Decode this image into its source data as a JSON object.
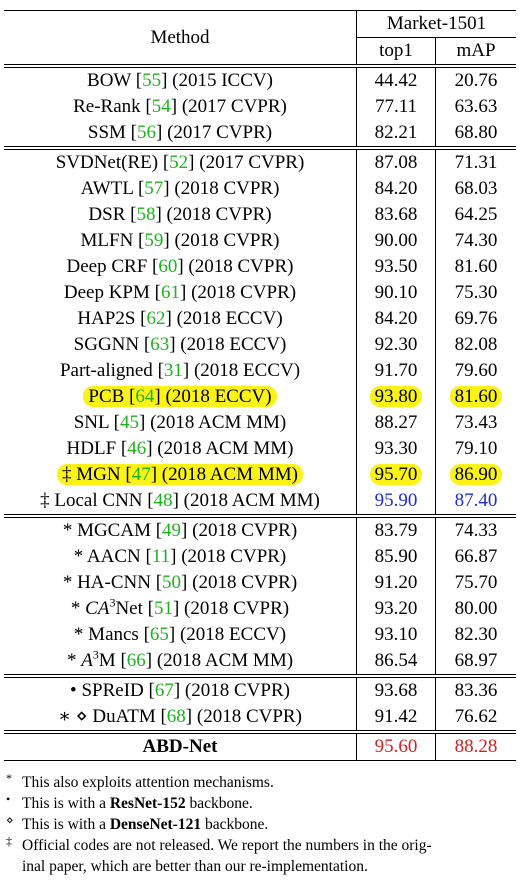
{
  "header": {
    "method": "Method",
    "dataset": "Market-1501",
    "top1": "top1",
    "map": "mAP"
  },
  "groups": [
    {
      "rows": [
        {
          "pre": "",
          "name": "BOW",
          "sup": "",
          "cite": "55",
          "venue": "(2015 ICCV)",
          "top1": "44.42",
          "map": "20.76"
        },
        {
          "pre": "",
          "name": "Re-Rank",
          "sup": "",
          "cite": "54",
          "venue": "(2017 CVPR)",
          "top1": "77.11",
          "map": "63.63"
        },
        {
          "pre": "",
          "name": "SSM",
          "sup": "",
          "cite": "56",
          "venue": "(2017 CVPR)",
          "top1": "82.21",
          "map": "68.80"
        }
      ]
    },
    {
      "rows": [
        {
          "pre": "",
          "name": "SVDNet(RE)",
          "sup": "",
          "cite": "52",
          "venue": "(2017 CVPR)",
          "top1": "87.08",
          "map": "71.31"
        },
        {
          "pre": "",
          "name": "AWTL",
          "sup": "",
          "cite": "57",
          "venue": "(2018 CVPR)",
          "top1": "84.20",
          "map": "68.03"
        },
        {
          "pre": "",
          "name": "DSR",
          "sup": "",
          "cite": "58",
          "venue": "(2018 CVPR)",
          "top1": "83.68",
          "map": "64.25"
        },
        {
          "pre": "",
          "name": "MLFN",
          "sup": "",
          "cite": "59",
          "venue": "(2018 CVPR)",
          "top1": "90.00",
          "map": "74.30"
        },
        {
          "pre": "",
          "name": "Deep CRF",
          "sup": "",
          "cite": "60",
          "venue": "(2018 CVPR)",
          "top1": "93.50",
          "map": "81.60"
        },
        {
          "pre": "",
          "name": "Deep KPM",
          "sup": "",
          "cite": "61",
          "venue": "(2018 CVPR)",
          "top1": "90.10",
          "map": "75.30"
        },
        {
          "pre": "",
          "name": "HAP2S",
          "sup": "",
          "cite": "62",
          "venue": "(2018 ECCV)",
          "top1": "84.20",
          "map": "69.76"
        },
        {
          "pre": "",
          "name": "SGGNN",
          "sup": "",
          "cite": "63",
          "venue": "(2018 ECCV)",
          "top1": "92.30",
          "map": "82.08"
        },
        {
          "pre": "",
          "name": "Part-aligned",
          "sup": "",
          "cite": "31",
          "venue": "(2018 ECCV)",
          "top1": "91.70",
          "map": "79.60"
        },
        {
          "pre": "",
          "name": "PCB",
          "sup": "",
          "cite": "64",
          "venue": "(2018 ECCV)",
          "top1": "93.80",
          "map": "81.60",
          "highlight": true
        },
        {
          "pre": "",
          "name": "SNL",
          "sup": "",
          "cite": "45",
          "venue": "(2018 ACM MM)",
          "top1": "88.27",
          "map": "73.43"
        },
        {
          "pre": "",
          "name": "HDLF",
          "sup": "",
          "cite": "46",
          "venue": "(2018 ACM MM)",
          "top1": "93.30",
          "map": "79.10"
        },
        {
          "pre": "‡",
          "name": "MGN",
          "sup": "",
          "cite": "47",
          "venue": "(2018 ACM MM)",
          "top1": "95.70",
          "map": "86.90",
          "highlight": true
        },
        {
          "pre": "‡",
          "name": "Local CNN",
          "sup": "",
          "cite": "48",
          "venue": "(2018 ACM MM)",
          "top1": "95.90",
          "map": "87.40",
          "color": "blue"
        }
      ]
    },
    {
      "rows": [
        {
          "pre": "*",
          "name": "MGCAM",
          "sup": "",
          "cite": "49",
          "venue": "(2018 CVPR)",
          "top1": "83.79",
          "map": "74.33"
        },
        {
          "pre": "*",
          "name": "AACN",
          "sup": "",
          "cite": "11",
          "venue": "(2018 CVPR)",
          "top1": "85.90",
          "map": "66.87"
        },
        {
          "pre": "*",
          "name": "HA-CNN",
          "sup": "",
          "cite": "50",
          "venue": "(2018 CVPR)",
          "top1": "91.20",
          "map": "75.70"
        },
        {
          "pre": "*",
          "name": "CA",
          "sup": "3",
          "name2": "Net",
          "cite": "51",
          "venue": "(2018 CVPR)",
          "top1": "93.20",
          "map": "80.00",
          "italic": true
        },
        {
          "pre": "*",
          "name": "Mancs",
          "sup": "",
          "cite": "65",
          "venue": "(2018 ECCV)",
          "top1": "93.10",
          "map": "82.30"
        },
        {
          "pre": "*",
          "name": "A",
          "sup": "3",
          "name2": "M",
          "cite": "66",
          "venue": "(2018 ACM MM)",
          "top1": "86.54",
          "map": "68.97",
          "italic": true
        }
      ]
    },
    {
      "rows": [
        {
          "pre": "•",
          "name": "SPReID",
          "sup": "",
          "cite": "67",
          "venue": "(2018 CVPR)",
          "top1": "93.68",
          "map": "83.36"
        },
        {
          "pre": "∗ ⋄",
          "name": "DuATM",
          "sup": "",
          "cite": "68",
          "venue": "(2018 CVPR)",
          "top1": "91.42",
          "map": "76.62"
        }
      ]
    }
  ],
  "final": {
    "name": "ABD-Net",
    "top1": "95.60",
    "map": "88.28",
    "color": "red"
  },
  "notes": [
    {
      "mark": "*",
      "parts": [
        {
          "t": "This also exploits attention mechanisms.",
          "b": false
        }
      ]
    },
    {
      "mark": "•",
      "parts": [
        {
          "t": "This is with a ",
          "b": false
        },
        {
          "t": "ResNet-152",
          "b": true
        },
        {
          "t": " backbone.",
          "b": false
        }
      ]
    },
    {
      "mark": "⋄",
      "parts": [
        {
          "t": "This is with a ",
          "b": false
        },
        {
          "t": "DenseNet-121",
          "b": true
        },
        {
          "t": " backbone.",
          "b": false
        }
      ]
    },
    {
      "mark": "‡",
      "parts": [
        {
          "t": "Official codes are not released. We report the numbers in the orig-",
          "b": false
        }
      ],
      "cont": "inal paper, which are better than our re-implementation."
    }
  ]
}
